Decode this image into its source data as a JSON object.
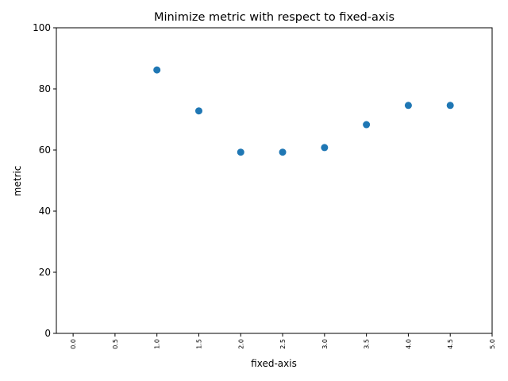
{
  "chart_data": {
    "type": "scatter",
    "title": "Minimize metric with respect to fixed-axis",
    "xlabel": "fixed-axis",
    "ylabel": "metric",
    "xlim": [
      -0.2,
      5.0
    ],
    "ylim": [
      0,
      100
    ],
    "x_ticks": [
      "0.0",
      "0.5",
      "1.0",
      "1.5",
      "2.0",
      "2.5",
      "3.0",
      "3.5",
      "4.0",
      "4.5",
      "5.0"
    ],
    "y_ticks": [
      "0",
      "20",
      "40",
      "60",
      "80",
      "100"
    ],
    "grid": false,
    "legend": "none",
    "series": [
      {
        "color": "#1f77b4",
        "x": [
          1.0,
          1.5,
          2.0,
          2.5,
          3.0,
          3.5,
          4.0,
          4.5
        ],
        "y": [
          86.2,
          72.8,
          59.3,
          59.3,
          60.8,
          68.3,
          74.6,
          74.6
        ]
      }
    ]
  }
}
